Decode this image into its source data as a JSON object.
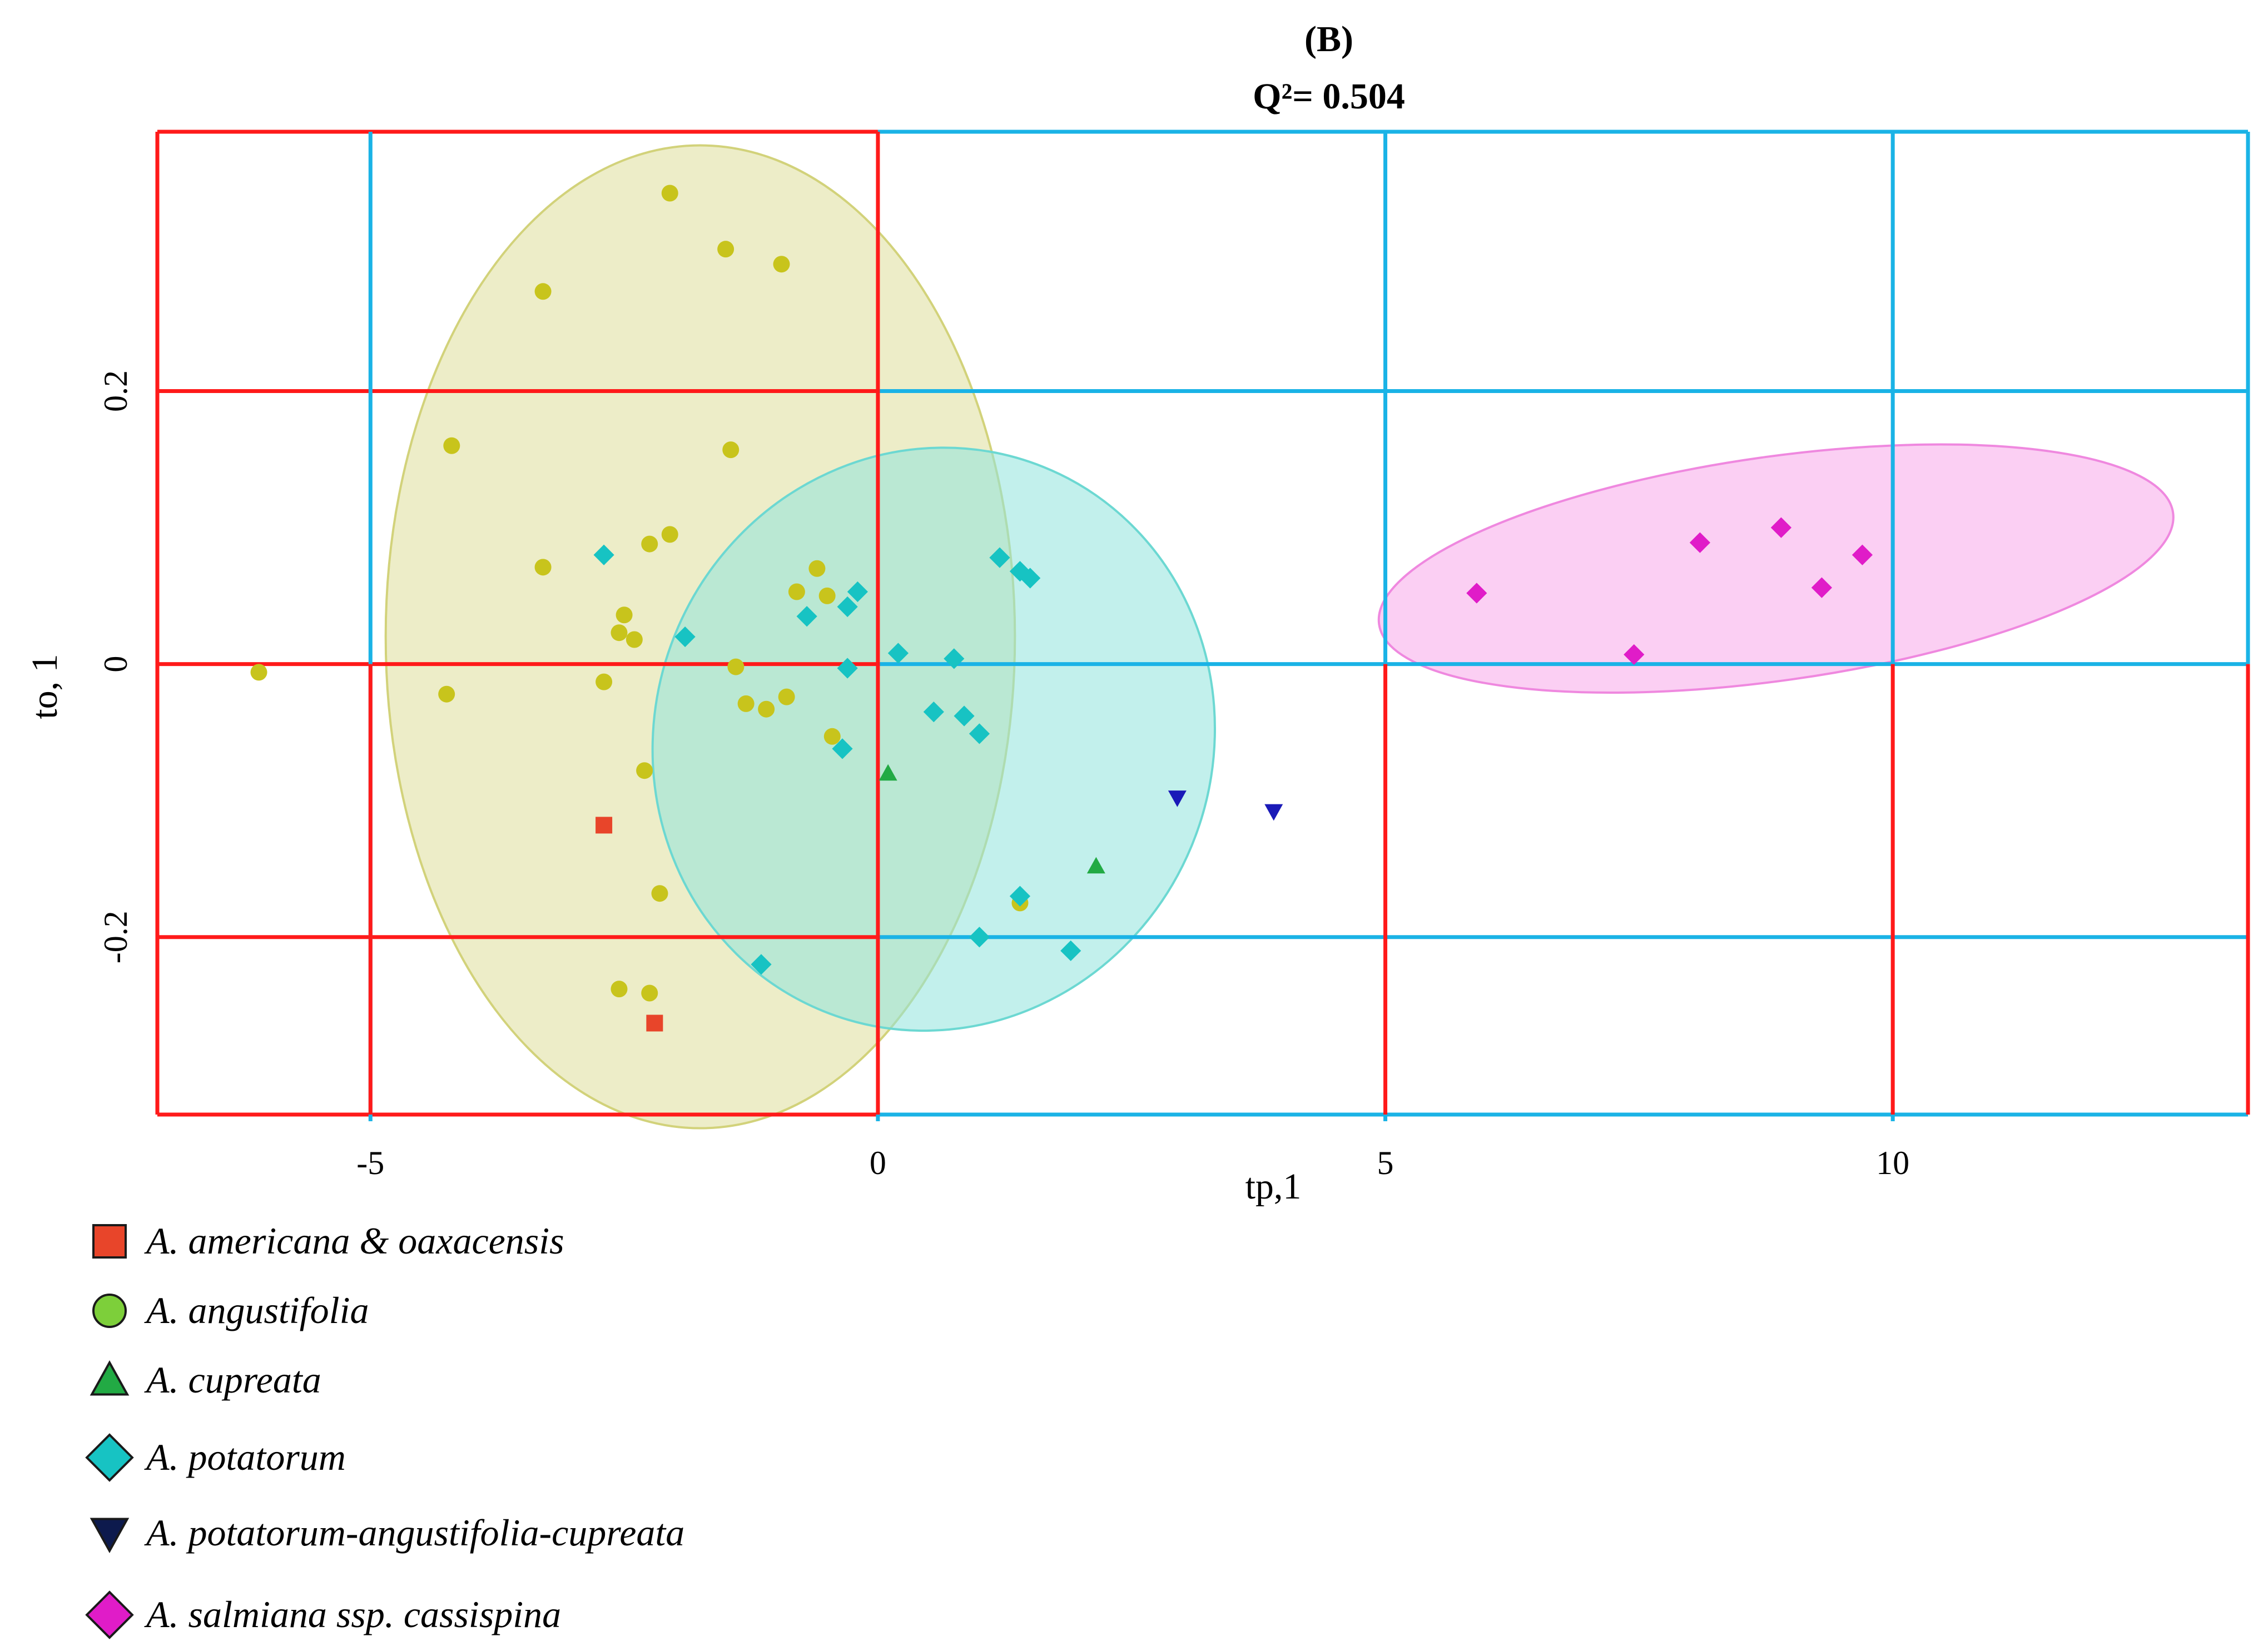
{
  "chart_data": {
    "type": "scatter",
    "panel_label": "(B)",
    "title": "Q²= 0.504",
    "xlabel": "tp,1",
    "ylabel": "to, 1",
    "xlim": [
      -7.1,
      13.5
    ],
    "ylim": [
      -0.33,
      0.39
    ],
    "xticks": [
      -5,
      0,
      5,
      10
    ],
    "xtick_labels": [
      "-5",
      "0",
      "5",
      "10"
    ],
    "yticks": [
      -0.2,
      0,
      0.2
    ],
    "ytick_labels": [
      "-0.2",
      "0",
      "0.2"
    ],
    "grid": true,
    "colors": {
      "red_grid": "#ff1a1a",
      "blue_grid": "#1ab3e6",
      "ellipse_angustifolia": "#e6e6a8",
      "ellipse_potatorum": "#9fe8e3",
      "ellipse_salmiana": "#f9b3ec"
    },
    "ellipses": [
      {
        "group": "A. angustifolia",
        "center": [
          -1.75,
          0.02
        ],
        "semi_x": 3.1,
        "semi_y": 0.36,
        "rotation_deg": 0,
        "color": "#dede9a",
        "stroke": "#d2d27a"
      },
      {
        "group": "A. potatorum",
        "center": [
          0.55,
          -0.055
        ],
        "semi_x": 2.75,
        "semi_y": 0.215,
        "rotation_deg": 22,
        "color": "#8fe3dd",
        "stroke": "#6cd8d2"
      },
      {
        "group": "A. salmiana ssp. cassispina",
        "center": [
          8.85,
          0.07
        ],
        "semi_x": 3.95,
        "semi_y": 0.082,
        "rotation_deg": -8,
        "color": "#f7a8e9",
        "stroke": "#ef88df"
      }
    ],
    "series": [
      {
        "name": "A. americana & oaxacensis",
        "marker": "square",
        "color": "#e8452a",
        "points": [
          [
            -2.7,
            -0.118
          ],
          [
            -2.2,
            -0.263
          ]
        ]
      },
      {
        "name": "A. angustifolia",
        "marker": "circle",
        "color": "#c8c41c",
        "legend_color": "#7dcf3a",
        "points": [
          [
            -2.05,
            0.345
          ],
          [
            -1.5,
            0.304
          ],
          [
            -0.95,
            0.293
          ],
          [
            -3.3,
            0.273
          ],
          [
            -4.2,
            0.16
          ],
          [
            -1.45,
            0.157
          ],
          [
            -3.3,
            0.071
          ],
          [
            -2.05,
            0.095
          ],
          [
            -2.25,
            0.088
          ],
          [
            -0.6,
            0.07
          ],
          [
            -0.8,
            0.053
          ],
          [
            -0.5,
            0.05
          ],
          [
            -2.5,
            0.036
          ],
          [
            -2.55,
            0.023
          ],
          [
            -2.4,
            0.018
          ],
          [
            -6.1,
            -0.006
          ],
          [
            -1.4,
            -0.002
          ],
          [
            -2.7,
            -0.013
          ],
          [
            -4.25,
            -0.022
          ],
          [
            -1.3,
            -0.029
          ],
          [
            -1.1,
            -0.033
          ],
          [
            -0.9,
            -0.024
          ],
          [
            -0.45,
            -0.053
          ],
          [
            -2.3,
            -0.078
          ],
          [
            -2.15,
            -0.168
          ],
          [
            -2.55,
            -0.238
          ],
          [
            -2.25,
            -0.241
          ],
          [
            1.4,
            -0.175
          ]
        ]
      },
      {
        "name": "A. cupreata",
        "marker": "triangle-up",
        "color": "#22aa44",
        "points": [
          [
            0.1,
            -0.08
          ],
          [
            2.15,
            -0.148
          ]
        ]
      },
      {
        "name": "A. potatorum",
        "marker": "diamond",
        "color": "#17c3c3",
        "points": [
          [
            -2.7,
            0.08
          ],
          [
            -1.9,
            0.02
          ],
          [
            -0.7,
            0.035
          ],
          [
            -0.3,
            0.042
          ],
          [
            -0.2,
            0.053
          ],
          [
            1.2,
            0.078
          ],
          [
            1.4,
            0.068
          ],
          [
            1.5,
            0.063
          ],
          [
            0.2,
            0.008
          ],
          [
            0.75,
            0.004
          ],
          [
            -0.3,
            -0.003
          ],
          [
            0.55,
            -0.035
          ],
          [
            0.85,
            -0.038
          ],
          [
            1.0,
            -0.051
          ],
          [
            -0.35,
            -0.062
          ],
          [
            1.4,
            -0.17
          ],
          [
            1.0,
            -0.2
          ],
          [
            1.9,
            -0.21
          ],
          [
            -1.15,
            -0.22
          ]
        ]
      },
      {
        "name": "A. potatorum-angustifolia-cupreata",
        "marker": "triangle-down",
        "color": "#1a1ab8",
        "legend_color": "#0d1a4d",
        "points": [
          [
            2.95,
            -0.098
          ],
          [
            3.9,
            -0.108
          ]
        ]
      },
      {
        "name": "A. salmiana ssp. cassispina",
        "marker": "diamond",
        "color": "#e01cc8",
        "points": [
          [
            5.9,
            0.052
          ],
          [
            8.1,
            0.089
          ],
          [
            8.9,
            0.1
          ],
          [
            9.7,
            0.08
          ],
          [
            9.3,
            0.056
          ],
          [
            7.45,
            0.007
          ]
        ]
      }
    ],
    "legend_position": "bottom-left",
    "legend_entries": [
      "A. americana & oaxacensis",
      "A. angustifolia",
      "A. cupreata",
      "A. potatorum",
      "A. potatorum-angustifolia-cupreata",
      "A. salmiana ssp. cassispina"
    ]
  }
}
